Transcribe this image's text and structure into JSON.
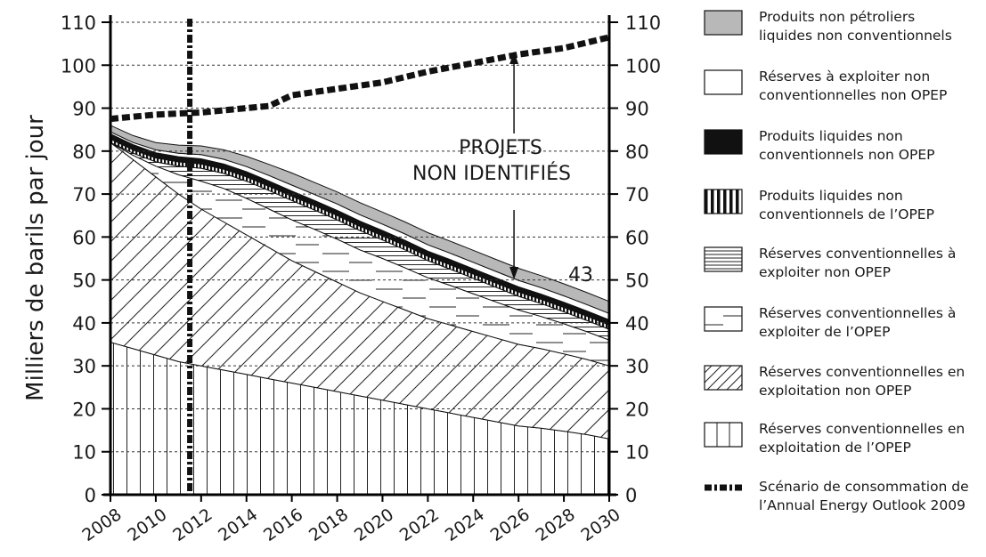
{
  "chart_data": {
    "type": "area",
    "ylabel": "Milliers de barils par jour",
    "ylim": [
      0,
      110
    ],
    "y_ticks": [
      0,
      10,
      20,
      30,
      40,
      50,
      60,
      70,
      80,
      90,
      100,
      110
    ],
    "x_ticks": [
      "2008",
      "2010",
      "2012",
      "2014",
      "2016",
      "2018",
      "2020",
      "2022",
      "2024",
      "2026",
      "2028",
      "2030"
    ],
    "xlim": [
      2008,
      2030
    ],
    "grid": true,
    "stacked": true,
    "x": [
      2008,
      2009,
      2010,
      2011,
      2012,
      2013,
      2014,
      2015,
      2016,
      2017,
      2018,
      2019,
      2020,
      2021,
      2022,
      2023,
      2024,
      2025,
      2026,
      2027,
      2028,
      2029,
      2030
    ],
    "series": [
      {
        "name": "Réserves conventionnelles en exploitation de l’OPEP",
        "pattern": "vertical",
        "values": [
          35.5,
          34,
          32.5,
          31,
          30,
          29,
          28,
          27,
          26,
          25,
          24,
          23,
          22,
          21,
          20,
          19,
          18,
          17,
          16,
          15.5,
          14.8,
          14,
          13
        ]
      },
      {
        "name": "Réserves conventionnelles en exploitation non OPEP",
        "pattern": "diagonal",
        "values": [
          46.5,
          44,
          41.5,
          39,
          36.5,
          34.5,
          32.5,
          30.5,
          28.5,
          27,
          25.5,
          24,
          23,
          22,
          21,
          20.5,
          20,
          19.5,
          19,
          18.5,
          18,
          17.5,
          17
        ]
      },
      {
        "name": "Réserves conventionnelles à exploiter de l’OPEP",
        "pattern": "long-dash",
        "values": [
          0,
          1,
          2.5,
          4.5,
          6.5,
          7.8,
          8.5,
          9,
          9.5,
          9.8,
          10,
          10,
          10,
          9.8,
          9.5,
          9.2,
          8.8,
          8.4,
          8,
          7.5,
          7,
          6.5,
          6
        ]
      },
      {
        "name": "Réserves conventionnelles à exploiter non OPEP",
        "pattern": "horizontal",
        "values": [
          0,
          0.5,
          1,
          2,
          3,
          3.5,
          4,
          4.3,
          4.5,
          4.5,
          4.5,
          4.5,
          4.3,
          4.2,
          4,
          3.8,
          3.6,
          3.4,
          3.2,
          3,
          2.8,
          2.6,
          2.5
        ]
      },
      {
        "name": "Produits liquides non conventionnels de l’OPEP",
        "pattern": "vertical-heavy",
        "values": [
          0.8,
          0.8,
          0.9,
          1,
          1,
          1,
          1,
          1,
          1,
          1,
          1,
          1,
          1,
          1,
          1,
          1,
          1,
          1,
          1,
          1,
          1,
          1,
          1
        ]
      },
      {
        "name": "Produits liquides non conventionnels non OPEP",
        "pattern": "solid-black",
        "values": [
          1.2,
          1.2,
          1.2,
          1.2,
          1.2,
          1.2,
          1.2,
          1.2,
          1.2,
          1.2,
          1.2,
          1.2,
          1.2,
          1.2,
          1.2,
          1.2,
          1.2,
          1.2,
          1.2,
          1.2,
          1.2,
          1.2,
          1.2
        ]
      },
      {
        "name": "Réserves à exploiter non conventionnelles non OPEP",
        "pattern": "white",
        "values": [
          0.5,
          0.5,
          0.7,
          0.8,
          1,
          1.1,
          1.2,
          1.3,
          1.4,
          1.4,
          1.5,
          1.5,
          1.5,
          1.5,
          1.5,
          1.5,
          1.5,
          1.5,
          1.5,
          1.5,
          1.5,
          1.5,
          1.5
        ]
      },
      {
        "name": "Produits non pétroliers liquides non conventionnels",
        "pattern": "gray",
        "values": [
          1.5,
          1.6,
          1.7,
          1.9,
          2,
          2.2,
          2.4,
          2.6,
          2.8,
          2.8,
          2.8,
          2.8,
          2.8,
          2.8,
          2.8,
          2.8,
          2.8,
          2.8,
          2.8,
          2.8,
          2.8,
          2.8,
          2.8
        ]
      }
    ],
    "consumption_line": {
      "name": "Scénario de consommation de l’Annual Energy Outlook 2009",
      "x": [
        2008,
        2010,
        2012,
        2014,
        2015,
        2016,
        2018,
        2020,
        2022,
        2024,
        2026,
        2028,
        2030
      ],
      "values": [
        87.5,
        88.5,
        89,
        90,
        90.5,
        93,
        94.5,
        96,
        98.5,
        100.5,
        102.5,
        104,
        106.5
      ]
    },
    "vertical_marker_x": 2011.5,
    "annotations": [
      {
        "line1": "PROJETS",
        "line2": "NON IDENTIFIÉS"
      },
      {
        "label": "43"
      }
    ],
    "legend_position": "right"
  }
}
